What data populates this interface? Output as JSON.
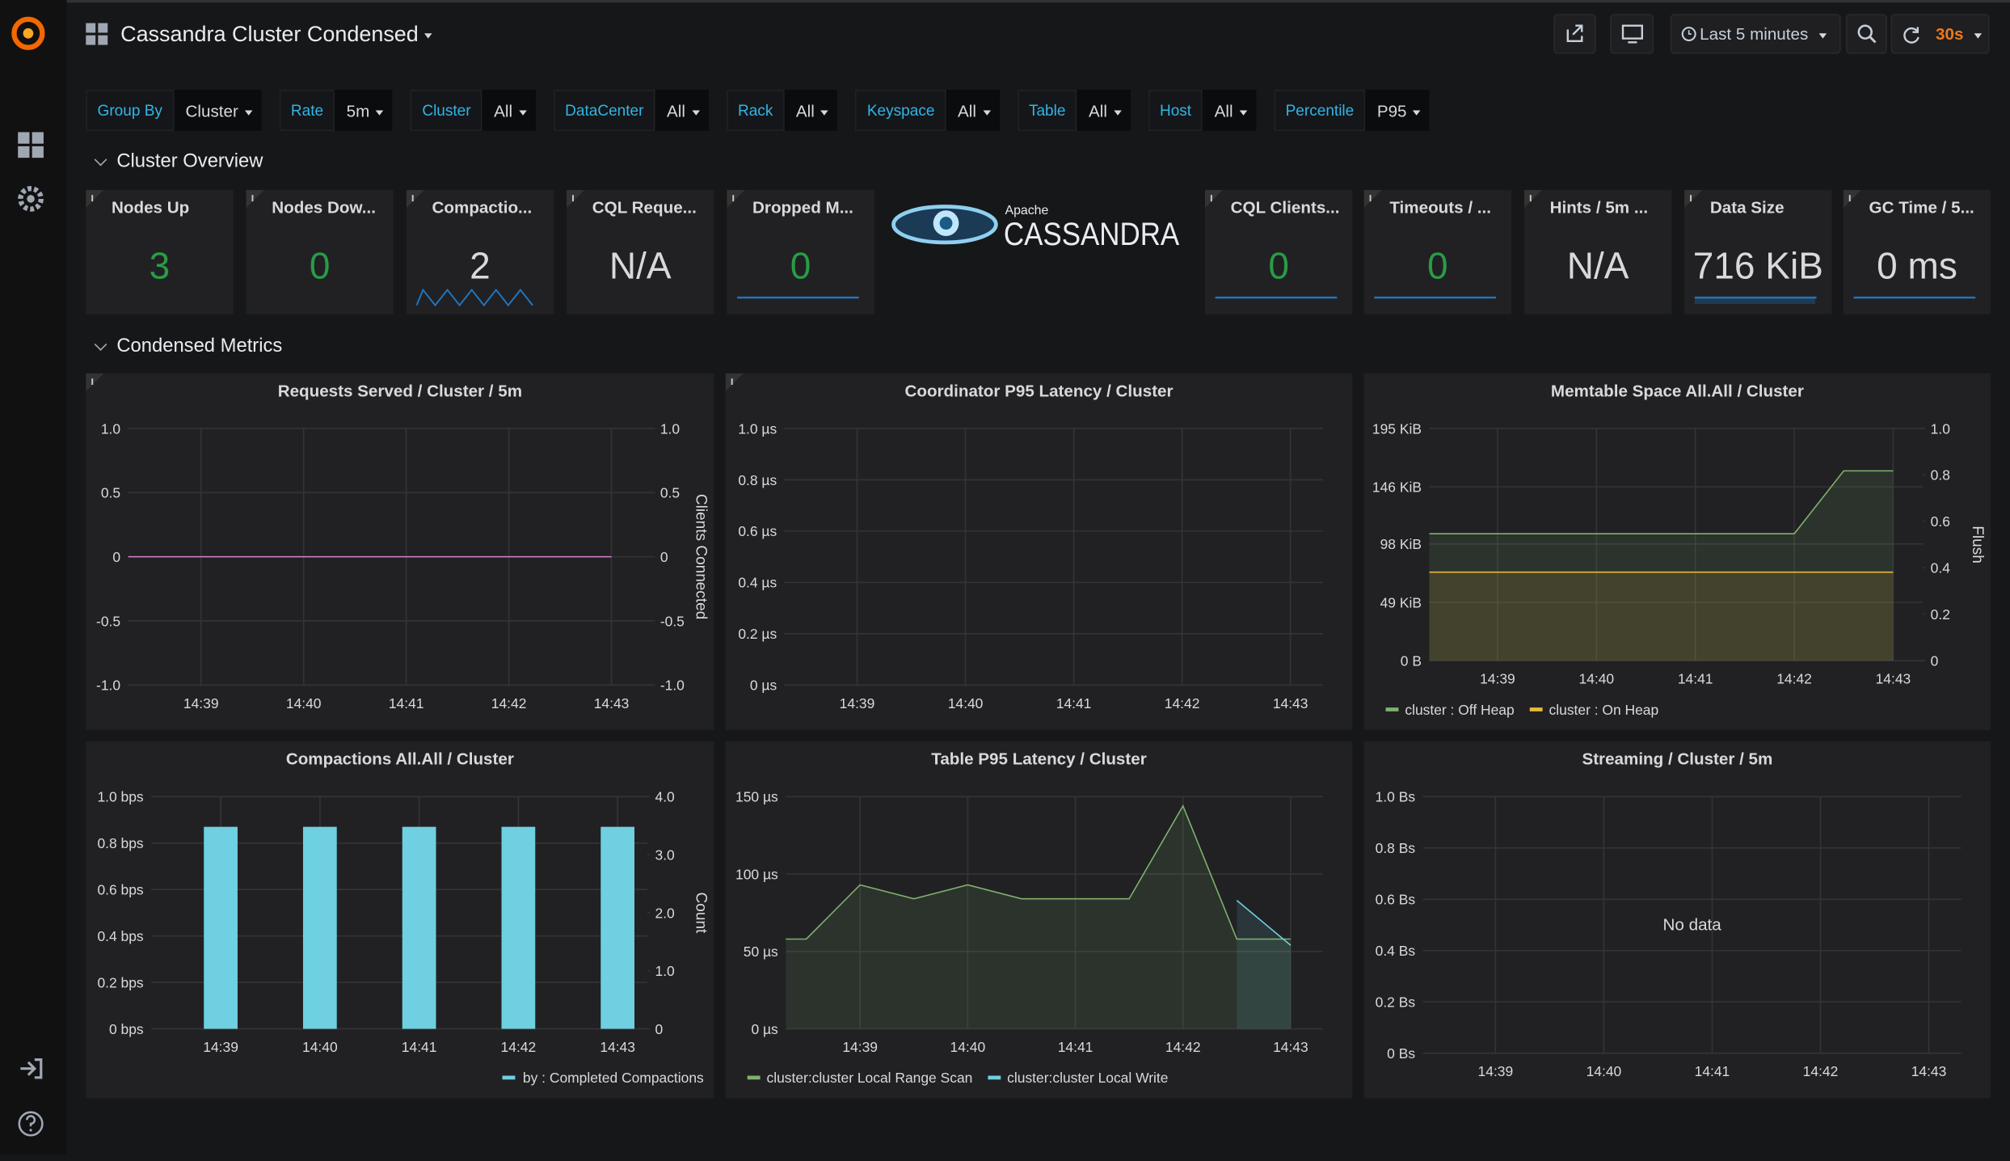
{
  "header": {
    "title": "Cassandra Cluster Condensed",
    "time_range": "Last 5 minutes",
    "refresh": "30s"
  },
  "variables": [
    {
      "label": "Group By",
      "value": "Cluster"
    },
    {
      "label": "Rate",
      "value": "5m"
    },
    {
      "label": "Cluster",
      "value": "All"
    },
    {
      "label": "DataCenter",
      "value": "All"
    },
    {
      "label": "Rack",
      "value": "All"
    },
    {
      "label": "Keyspace",
      "value": "All"
    },
    {
      "label": "Table",
      "value": "All"
    },
    {
      "label": "Host",
      "value": "All"
    },
    {
      "label": "Percentile",
      "value": "P95"
    }
  ],
  "rows": [
    "Cluster Overview",
    "Condensed Metrics"
  ],
  "logo": {
    "small": "Apache",
    "name": "CASSANDRA"
  },
  "stats": [
    {
      "title": "Nodes Up",
      "value": "3",
      "color": "#299c46"
    },
    {
      "title": "Nodes Dow...",
      "value": "0",
      "color": "#299c46"
    },
    {
      "title": "Compactio...",
      "value": "2",
      "color": "#d8d9da"
    },
    {
      "title": "CQL Reque...",
      "value": "N/A",
      "color": "#d8d9da"
    },
    {
      "title": "Dropped M...",
      "value": "0",
      "color": "#299c46"
    },
    {
      "title": "CQL Clients...",
      "value": "0",
      "color": "#299c46"
    },
    {
      "title": "Timeouts / ...",
      "value": "0",
      "color": "#299c46"
    },
    {
      "title": "Hints / 5m ...",
      "value": "N/A",
      "color": "#d8d9da"
    },
    {
      "title": "Data Size",
      "value": "716 KiB",
      "color": "#d8d9da"
    },
    {
      "title": "GC Time / 5...",
      "value": "0 ms",
      "color": "#d8d9da"
    }
  ],
  "chart_data": [
    {
      "type": "line",
      "title": "Requests Served / Cluster / 5m",
      "xlim": [
        38.29,
        43.4
      ],
      "xticks": [
        {
          "value": 39,
          "label": "14:39"
        },
        {
          "value": 40,
          "label": "14:40"
        },
        {
          "value": 41,
          "label": "14:41"
        },
        {
          "value": 42,
          "label": "14:42"
        },
        {
          "value": 43,
          "label": "14:43"
        }
      ],
      "ylim": [
        -1,
        1
      ],
      "yticks": [
        {
          "value": -1,
          "label": "-1.0"
        },
        -0.5,
        0,
        0.5,
        {
          "value": 1,
          "label": "1.0"
        }
      ],
      "y2lim": [
        -1,
        1
      ],
      "y2ticks": [
        {
          "value": -1,
          "label": "-1.0"
        },
        -0.5,
        0,
        0.5,
        {
          "value": 1,
          "label": "1.0"
        }
      ],
      "y2label": "Clients Connected",
      "grid": true,
      "series": [
        {
          "color": "#d683ce",
          "x": [
            38.29,
            43
          ],
          "values": [
            0,
            0
          ]
        }
      ]
    },
    {
      "type": "line",
      "title": "Coordinator P95 Latency / Cluster",
      "xlim": [
        38.33,
        43.3
      ],
      "xticks": [
        {
          "value": 39,
          "label": "14:39"
        },
        {
          "value": 40,
          "label": "14:40"
        },
        {
          "value": 41,
          "label": "14:41"
        },
        {
          "value": 42,
          "label": "14:42"
        },
        {
          "value": 43,
          "label": "14:43"
        }
      ],
      "ylim": [
        0,
        1
      ],
      "yticks": [
        {
          "value": 0,
          "label": "0 µs"
        },
        {
          "value": 0.2,
          "label": "0.2 µs"
        },
        {
          "value": 0.4,
          "label": "0.4 µs"
        },
        {
          "value": 0.6,
          "label": "0.6 µs"
        },
        {
          "value": 0.8,
          "label": "0.8 µs"
        },
        {
          "value": 1,
          "label": "1.0 µs"
        }
      ],
      "grid": true,
      "series": []
    },
    {
      "type": "line",
      "title": "Memtable Space All.All / Cluster",
      "xlim": [
        38.31,
        43.3
      ],
      "xticks": [
        {
          "value": 39,
          "label": "14:39"
        },
        {
          "value": 40,
          "label": "14:40"
        },
        {
          "value": 41,
          "label": "14:41"
        },
        {
          "value": 42,
          "label": "14:42"
        },
        {
          "value": 43,
          "label": "14:43"
        }
      ],
      "ylim": [
        0,
        195
      ],
      "yticks": [
        {
          "value": 0,
          "label": "0 B"
        },
        {
          "value": 49,
          "label": "49 KiB"
        },
        {
          "value": 98,
          "label": "98 KiB"
        },
        {
          "value": 146,
          "label": "146 KiB"
        },
        {
          "value": 195,
          "label": "195 KiB"
        }
      ],
      "y2lim": [
        0,
        1
      ],
      "y2ticks": [
        0,
        0.2,
        0.4,
        0.6,
        0.8,
        {
          "value": 1,
          "label": "1.0"
        }
      ],
      "y2label": "Flush",
      "grid": true,
      "fill": true,
      "legend": "left",
      "series": [
        {
          "name": "cluster : Off Heap",
          "color": "#7eb26d",
          "x": [
            38.31,
            42,
            42.5,
            43
          ],
          "values": [
            106.6,
            106.6,
            159.4,
            159.4
          ]
        },
        {
          "name": "cluster : On Heap",
          "color": "#eab839",
          "x": [
            38.31,
            43
          ],
          "values": [
            74.3,
            74.3
          ]
        }
      ]
    },
    {
      "type": "bar",
      "title": "Compactions All.All / Cluster",
      "xlim": [
        38.3,
        43.3
      ],
      "xticks": [
        {
          "value": 39,
          "label": "14:39"
        },
        {
          "value": 40,
          "label": "14:40"
        },
        {
          "value": 41,
          "label": "14:41"
        },
        {
          "value": 42,
          "label": "14:42"
        },
        {
          "value": 43,
          "label": "14:43"
        }
      ],
      "ylim": [
        0,
        1
      ],
      "yticks": [
        {
          "value": 0,
          "label": "0 bps"
        },
        {
          "value": 0.2,
          "label": "0.2 bps"
        },
        {
          "value": 0.4,
          "label": "0.4 bps"
        },
        {
          "value": 0.6,
          "label": "0.6 bps"
        },
        {
          "value": 0.8,
          "label": "0.8 bps"
        },
        {
          "value": 1,
          "label": "1.0 bps"
        }
      ],
      "y2lim": [
        0,
        4
      ],
      "y2ticks": [
        0,
        {
          "value": 1,
          "label": "1.0"
        },
        {
          "value": 2,
          "label": "2.0"
        },
        {
          "value": 3,
          "label": "3.0"
        },
        {
          "value": 4,
          "label": "4.0"
        }
      ],
      "y2label": "Count",
      "grid": true,
      "legend": "right",
      "series": [
        {
          "name": "by : Completed Compactions",
          "color": "#6ed0e0",
          "x": [
            39,
            40,
            41,
            42,
            43
          ],
          "values": [
            0.87,
            0.87,
            0.87,
            0.87,
            0.87
          ]
        }
      ]
    },
    {
      "type": "line",
      "title": "Table P95 Latency / Cluster",
      "xlim": [
        38.31,
        43.3
      ],
      "xticks": [
        {
          "value": 39,
          "label": "14:39"
        },
        {
          "value": 40,
          "label": "14:40"
        },
        {
          "value": 41,
          "label": "14:41"
        },
        {
          "value": 42,
          "label": "14:42"
        },
        {
          "value": 43,
          "label": "14:43"
        }
      ],
      "ylim": [
        0,
        150
      ],
      "yticks": [
        {
          "value": 0,
          "label": "0 µs"
        },
        {
          "value": 50,
          "label": "50 µs"
        },
        {
          "value": 100,
          "label": "100 µs"
        },
        {
          "value": 150,
          "label": "150 µs"
        }
      ],
      "grid": true,
      "fill": true,
      "legend": "left",
      "series": [
        {
          "name": "cluster:cluster Local Range Scan",
          "color": "#7eb26d",
          "x": [
            38.31,
            38.5,
            39,
            39.5,
            40,
            40.5,
            41,
            41.5,
            42,
            42.5,
            43
          ],
          "values": [
            58,
            58,
            93,
            84,
            93,
            84,
            84,
            84,
            144,
            58,
            58
          ]
        },
        {
          "name": "cluster:cluster Local Write",
          "color": "#6ed0e0",
          "x": [
            42.5,
            43
          ],
          "values": [
            83,
            54
          ]
        }
      ]
    },
    {
      "type": "line",
      "title": "Streaming / Cluster / 5m",
      "xlim": [
        38.33,
        43.3
      ],
      "xticks": [
        {
          "value": 39,
          "label": "14:39"
        },
        {
          "value": 40,
          "label": "14:40"
        },
        {
          "value": 41,
          "label": "14:41"
        },
        {
          "value": 42,
          "label": "14:42"
        },
        {
          "value": 43,
          "label": "14:43"
        }
      ],
      "ylim": [
        0,
        1
      ],
      "yticks": [
        {
          "value": 0,
          "label": "0 Bs"
        },
        {
          "value": 0.2,
          "label": "0.2 Bs"
        },
        {
          "value": 0.4,
          "label": "0.4 Bs"
        },
        {
          "value": 0.6,
          "label": "0.6 Bs"
        },
        {
          "value": 0.8,
          "label": "0.8 Bs"
        },
        {
          "value": 1,
          "label": "1.0 Bs"
        }
      ],
      "grid": true,
      "no_data_text": "No data",
      "series": []
    }
  ]
}
